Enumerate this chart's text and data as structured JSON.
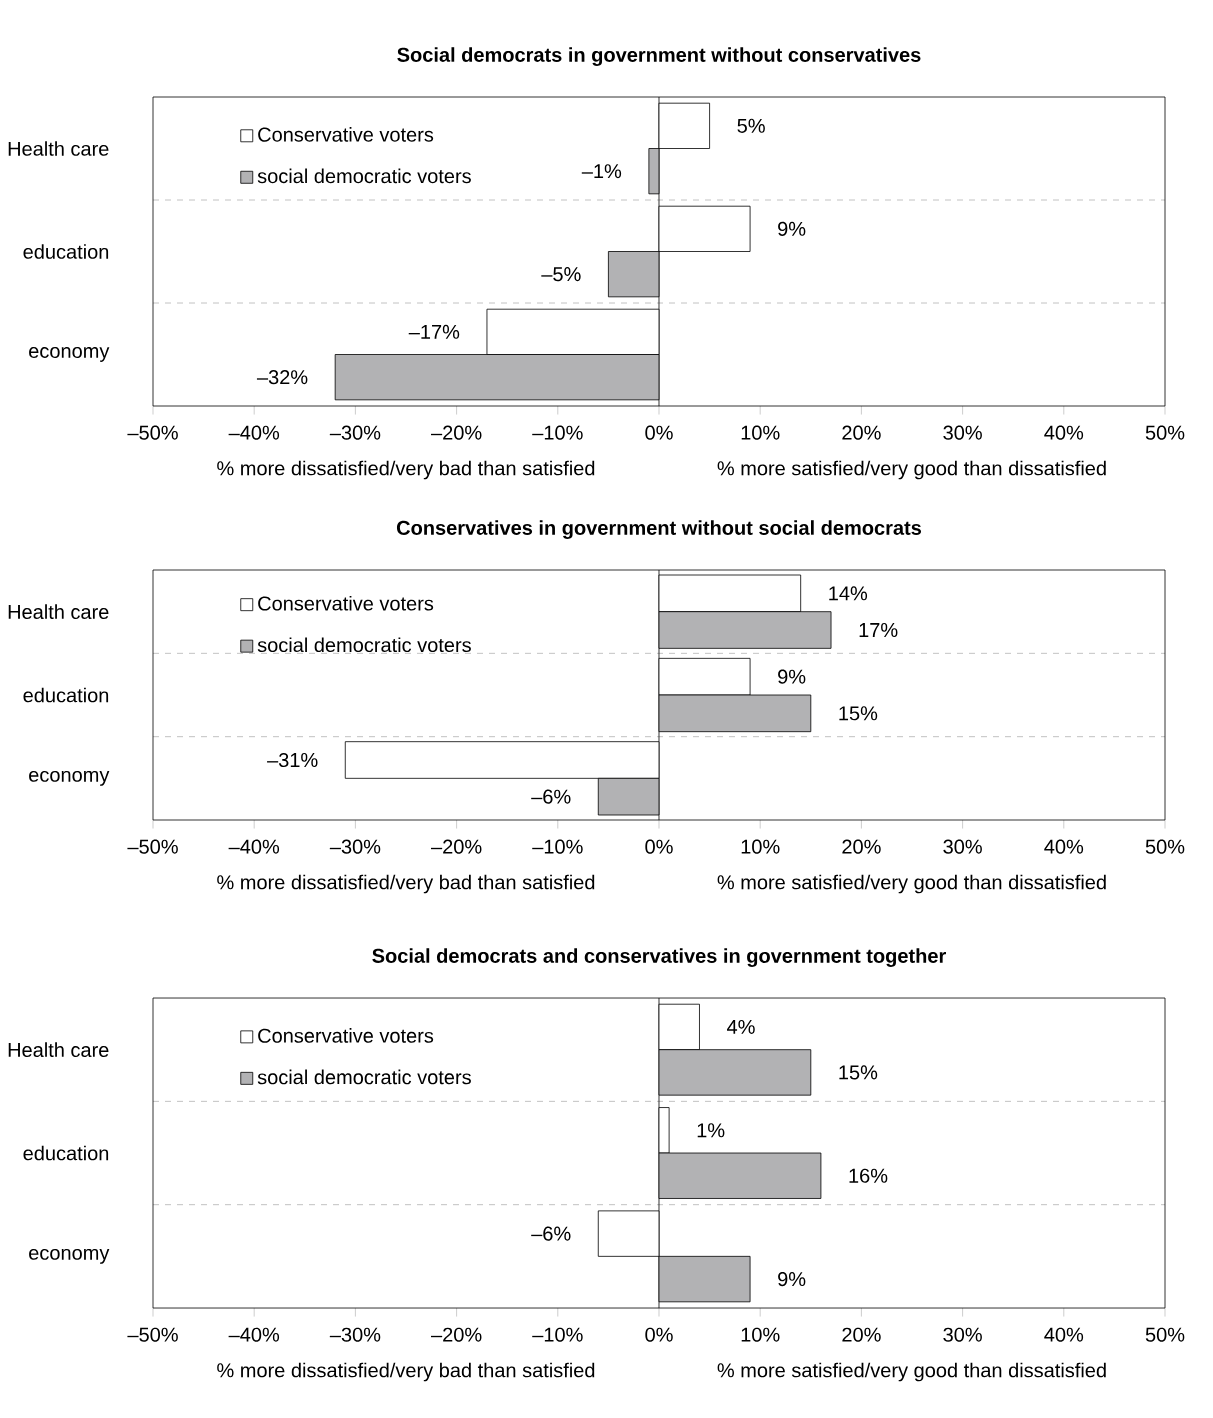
{
  "chart_data": [
    {
      "type": "bar",
      "orientation": "horizontal",
      "title": "Social democrats in government without conservatives",
      "categories": [
        "Health care",
        "education",
        "economy"
      ],
      "series": [
        {
          "name": "Conservative voters",
          "color": "#ffffff",
          "values": [
            5,
            9,
            -17
          ],
          "value_labels": [
            "5%",
            "9%",
            "–17%"
          ]
        },
        {
          "name": "social democratic voters",
          "color": "#b2b2b4",
          "values": [
            -1,
            -5,
            -32
          ],
          "value_labels": [
            "–1%",
            "–5%",
            "–32%"
          ]
        }
      ],
      "xlim": [
        -50,
        50
      ],
      "xticks": [
        {
          "value": -50,
          "label": "–50%"
        },
        {
          "value": -40,
          "label": "–40%"
        },
        {
          "value": -30,
          "label": "–30%"
        },
        {
          "value": -20,
          "label": "–20%"
        },
        {
          "value": -10,
          "label": "–10%"
        },
        {
          "value": 0,
          "label": "0%"
        },
        {
          "value": 10,
          "label": "10%"
        },
        {
          "value": 20,
          "label": "20%"
        },
        {
          "value": 30,
          "label": "30%"
        },
        {
          "value": 40,
          "label": "40%"
        },
        {
          "value": 50,
          "label": "50%"
        }
      ],
      "grid": "y",
      "legend": "top left",
      "annotations": [
        "% more dissatisfied/very bad than satisfied",
        "% more satisfied/very good than dissatisfied"
      ]
    },
    {
      "type": "bar",
      "orientation": "horizontal",
      "title": "Conservatives in government without social democrats",
      "categories": [
        "Health care",
        "education",
        "economy"
      ],
      "series": [
        {
          "name": "Conservative voters",
          "color": "#ffffff",
          "values": [
            14,
            9,
            -31
          ],
          "value_labels": [
            "14%",
            "9%",
            "–31%"
          ]
        },
        {
          "name": "social democratic voters",
          "color": "#b2b2b4",
          "values": [
            17,
            15,
            -6
          ],
          "value_labels": [
            "17%",
            "15%",
            "–6%"
          ]
        }
      ],
      "xlim": [
        -50,
        50
      ],
      "xticks": [
        {
          "value": -50,
          "label": "–50%"
        },
        {
          "value": -40,
          "label": "–40%"
        },
        {
          "value": -30,
          "label": "–30%"
        },
        {
          "value": -20,
          "label": "–20%"
        },
        {
          "value": -10,
          "label": "–10%"
        },
        {
          "value": 0,
          "label": "0%"
        },
        {
          "value": 10,
          "label": "10%"
        },
        {
          "value": 20,
          "label": "20%"
        },
        {
          "value": 30,
          "label": "30%"
        },
        {
          "value": 40,
          "label": "40%"
        },
        {
          "value": 50,
          "label": "50%"
        }
      ],
      "grid": "y",
      "legend": "top left",
      "annotations": [
        "% more dissatisfied/very bad than satisfied",
        "% more satisfied/very good than dissatisfied"
      ]
    },
    {
      "type": "bar",
      "orientation": "horizontal",
      "title": "Social democrats and conservatives in government together",
      "categories": [
        "Health care",
        "education",
        "economy"
      ],
      "series": [
        {
          "name": "Conservative voters",
          "color": "#ffffff",
          "values": [
            4,
            1,
            -6
          ],
          "value_labels": [
            "4%",
            "1%",
            "–6%"
          ]
        },
        {
          "name": "social democratic voters",
          "color": "#b2b2b4",
          "values": [
            15,
            16,
            9
          ],
          "value_labels": [
            "15%",
            "16%",
            "9%"
          ]
        }
      ],
      "xlim": [
        -50,
        50
      ],
      "xticks": [
        {
          "value": -50,
          "label": "–50%"
        },
        {
          "value": -40,
          "label": "–40%"
        },
        {
          "value": -30,
          "label": "–30%"
        },
        {
          "value": -20,
          "label": "–20%"
        },
        {
          "value": -10,
          "label": "–10%"
        },
        {
          "value": 0,
          "label": "0%"
        },
        {
          "value": 10,
          "label": "10%"
        },
        {
          "value": 20,
          "label": "20%"
        },
        {
          "value": 30,
          "label": "30%"
        },
        {
          "value": 40,
          "label": "40%"
        },
        {
          "value": 50,
          "label": "50%"
        }
      ],
      "grid": "y",
      "legend": "top left",
      "annotations": [
        "% more dissatisfied/very bad than satisfied",
        "% more satisfied/very good than dissatisfied"
      ]
    }
  ]
}
